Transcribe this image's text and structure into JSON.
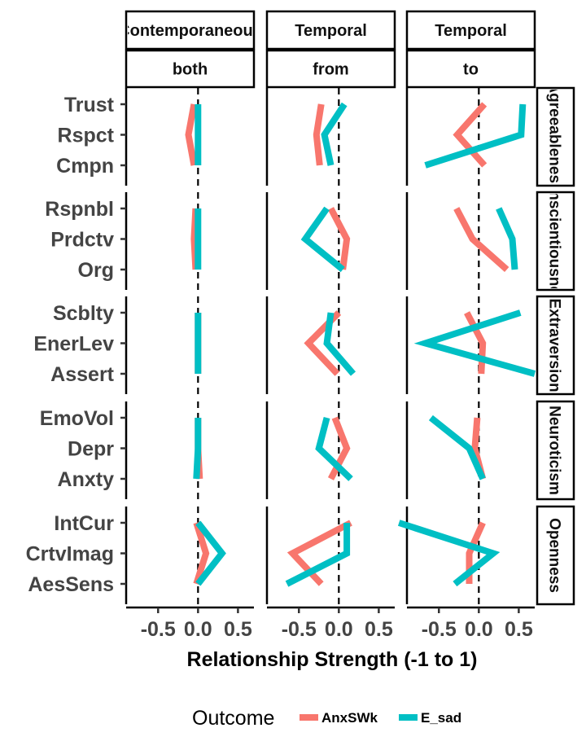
{
  "chart_data": {
    "type": "line",
    "xlabel": "Relationship Strength (-1 to 1)",
    "xlim": [
      -0.9,
      0.7
    ],
    "x_ticks": [
      -0.5,
      0.0,
      0.5
    ],
    "x_tick_labels": [
      "-0.5",
      "0.0",
      "0.5"
    ],
    "reference_line_x": 0,
    "legend": {
      "title": "Outcome",
      "position": "bottom",
      "entries": [
        {
          "name": "AnxSWk",
          "color": "#F8766D"
        },
        {
          "name": "E_sad",
          "color": "#00BFC4"
        }
      ]
    },
    "columns": [
      {
        "top": "Contemporaneous",
        "bottom": "both"
      },
      {
        "top": "Temporal",
        "bottom": "from"
      },
      {
        "top": "Temporal",
        "bottom": "to"
      }
    ],
    "rows": [
      {
        "label": "Agreeableness",
        "traits": [
          "Trust",
          "Rspct",
          "Cmpn"
        ],
        "panels": [
          {
            "AnxSWk": [
              -0.05,
              -0.12,
              -0.05
            ],
            "E_sad": [
              0.0,
              0.0,
              0.0
            ]
          },
          {
            "AnxSWk": [
              -0.22,
              -0.28,
              -0.24
            ],
            "E_sad": [
              0.07,
              -0.18,
              -0.1
            ]
          },
          {
            "AnxSWk": [
              0.07,
              -0.27,
              0.07
            ],
            "E_sad": [
              0.55,
              0.53,
              -0.67
            ]
          }
        ]
      },
      {
        "label": "Conscientiousness",
        "traits": [
          "Rspnbl",
          "Prdctv",
          "Org"
        ],
        "panels": [
          {
            "AnxSWk": [
              -0.03,
              -0.05,
              -0.03
            ],
            "E_sad": [
              0.0,
              0.0,
              0.0
            ]
          },
          {
            "AnxSWk": [
              -0.1,
              0.1,
              0.05
            ],
            "E_sad": [
              -0.15,
              -0.42,
              0.05
            ]
          },
          {
            "AnxSWk": [
              -0.28,
              -0.08,
              0.35
            ],
            "E_sad": [
              0.25,
              0.42,
              0.45
            ]
          }
        ]
      },
      {
        "label": "Extraversion",
        "traits": [
          "Scblty",
          "EnerLev",
          "Assert"
        ],
        "panels": [
          {
            "AnxSWk": [
              0.0,
              0.0,
              0.0
            ],
            "E_sad": [
              0.0,
              0.0,
              0.0
            ]
          },
          {
            "AnxSWk": [
              0.0,
              -0.38,
              -0.02
            ],
            "E_sad": [
              -0.1,
              -0.15,
              0.18
            ]
          },
          {
            "AnxSWk": [
              -0.15,
              0.05,
              0.03
            ],
            "E_sad": [
              0.52,
              -0.67,
              0.7
            ]
          }
        ]
      },
      {
        "label": "Neuroticism",
        "traits": [
          "EmoVol",
          "Depr",
          "Anxty"
        ],
        "panels": [
          {
            "AnxSWk": [
              0.0,
              0.0,
              0.02
            ],
            "E_sad": [
              0.0,
              0.0,
              -0.02
            ]
          },
          {
            "AnxSWk": [
              -0.05,
              0.1,
              -0.1
            ],
            "E_sad": [
              -0.15,
              -0.25,
              0.15
            ]
          },
          {
            "AnxSWk": [
              -0.02,
              -0.05,
              0.05
            ],
            "E_sad": [
              -0.6,
              -0.12,
              0.05
            ]
          }
        ]
      },
      {
        "label": "Openness",
        "traits": [
          "IntCur",
          "CrtvImag",
          "AesSens"
        ],
        "panels": [
          {
            "AnxSWk": [
              -0.02,
              0.1,
              -0.02
            ],
            "E_sad": [
              0.0,
              0.3,
              0.0
            ]
          },
          {
            "AnxSWk": [
              0.15,
              -0.58,
              -0.22
            ],
            "E_sad": [
              0.1,
              0.1,
              -0.65
            ]
          },
          {
            "AnxSWk": [
              0.05,
              -0.12,
              -0.12
            ],
            "E_sad": [
              -1.0,
              0.18,
              -0.3
            ]
          }
        ]
      }
    ]
  }
}
